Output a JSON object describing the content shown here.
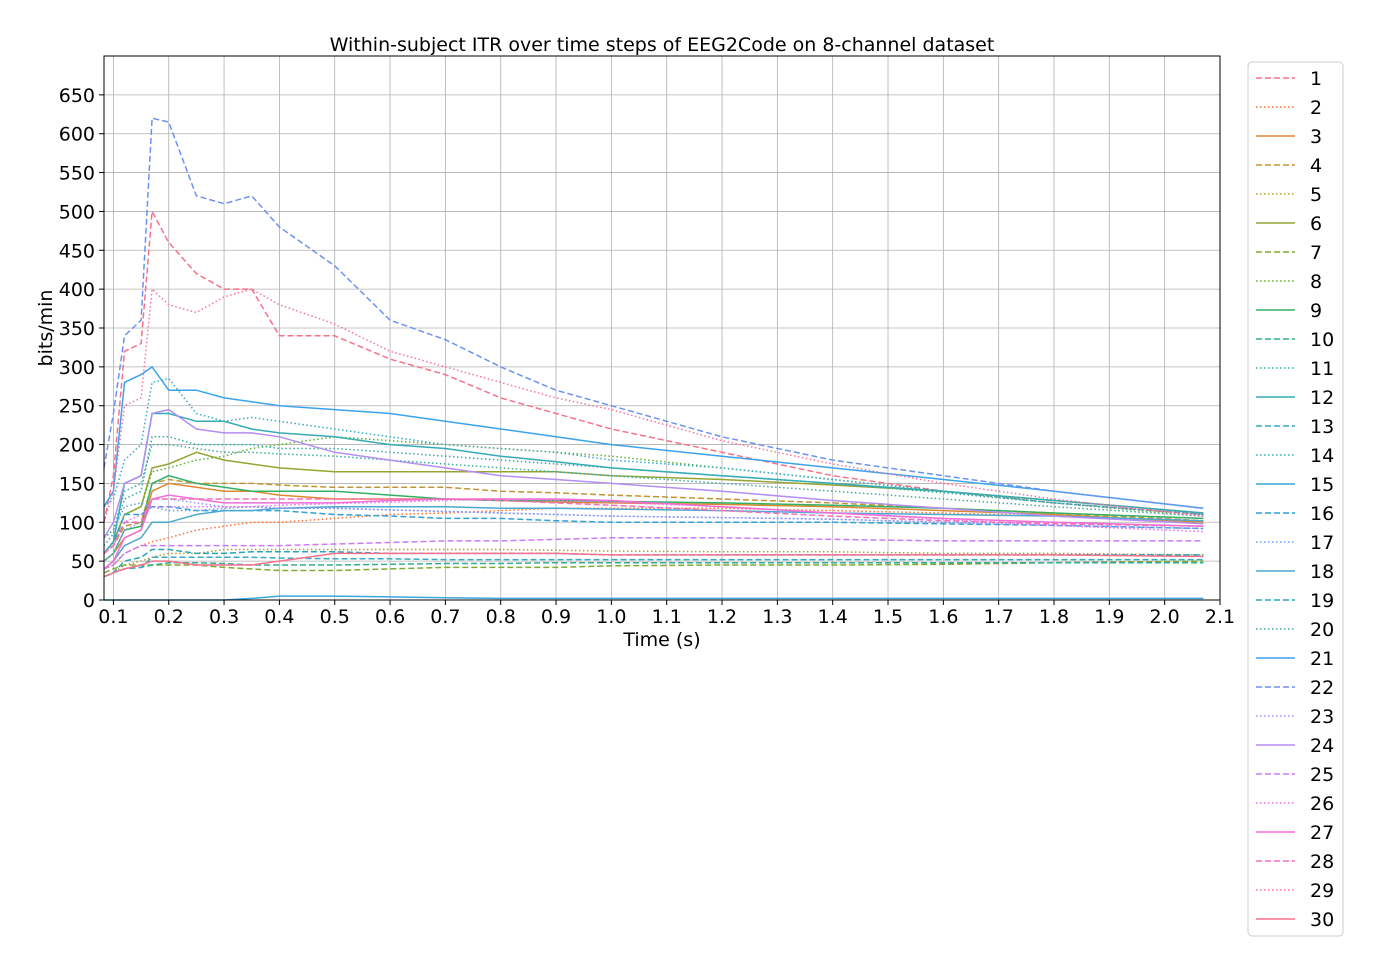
{
  "chart_data": {
    "type": "line",
    "title": "Within-subject ITR over time steps of EEG2Code on 8-channel dataset",
    "xlabel": "Time (s)",
    "ylabel": "bits/min",
    "xlim": [
      0.083,
      2.1
    ],
    "ylim": [
      0,
      700
    ],
    "xticks": [
      "0.1",
      "0.2",
      "0.3",
      "0.4",
      "0.5",
      "0.6",
      "0.7",
      "0.8",
      "0.9",
      "1.0",
      "1.1",
      "1.2",
      "1.3",
      "1.4",
      "1.5",
      "1.6",
      "1.7",
      "1.8",
      "1.9",
      "2.0",
      "2.1"
    ],
    "yticks": [
      "0",
      "50",
      "100",
      "150",
      "200",
      "250",
      "300",
      "350",
      "400",
      "450",
      "500",
      "550",
      "600",
      "650"
    ],
    "grid": true,
    "legend": "outside-right",
    "x": [
      0.083,
      0.1,
      0.12,
      0.15,
      0.17,
      0.2,
      0.25,
      0.3,
      0.35,
      0.4,
      0.5,
      0.6,
      0.7,
      0.8,
      0.9,
      1.0,
      1.2,
      1.4,
      1.6,
      1.8,
      2.07
    ],
    "series": [
      {
        "name": "1",
        "color": "#f77189",
        "dash": "dashed",
        "values": [
          100,
          160,
          320,
          330,
          500,
          460,
          420,
          400,
          400,
          340,
          340,
          310,
          290,
          260,
          240,
          220,
          190,
          160,
          140,
          125,
          110
        ]
      },
      {
        "name": "2",
        "color": "#f5763b",
        "dash": "dotted",
        "values": [
          40,
          45,
          60,
          70,
          75,
          80,
          90,
          95,
          100,
          100,
          105,
          110,
          112,
          115,
          118,
          118,
          118,
          115,
          112,
          108,
          100
        ]
      },
      {
        "name": "3",
        "color": "#dc8932",
        "dash": "solid",
        "values": [
          50,
          60,
          80,
          90,
          140,
          150,
          145,
          140,
          140,
          135,
          130,
          130,
          130,
          128,
          126,
          125,
          123,
          120,
          115,
          110,
          100
        ]
      },
      {
        "name": "4",
        "color": "#c39532",
        "dash": "dashed",
        "values": [
          60,
          70,
          95,
          100,
          150,
          155,
          150,
          150,
          150,
          148,
          145,
          145,
          145,
          140,
          138,
          135,
          130,
          125,
          118,
          112,
          102
        ]
      },
      {
        "name": "5",
        "color": "#ae9d31",
        "dash": "dotted",
        "values": [
          30,
          35,
          45,
          50,
          55,
          60,
          60,
          65,
          65,
          65,
          65,
          65,
          65,
          65,
          64,
          63,
          62,
          62,
          60,
          60,
          58
        ]
      },
      {
        "name": "6",
        "color": "#97a431",
        "dash": "solid",
        "values": [
          60,
          75,
          110,
          120,
          170,
          175,
          190,
          180,
          175,
          170,
          165,
          165,
          165,
          165,
          165,
          160,
          155,
          148,
          140,
          128,
          112
        ]
      },
      {
        "name": "7",
        "color": "#80aa31",
        "dash": "dashed",
        "values": [
          35,
          40,
          45,
          45,
          45,
          45,
          45,
          42,
          40,
          38,
          38,
          40,
          42,
          42,
          42,
          44,
          45,
          45,
          46,
          48,
          50
        ]
      },
      {
        "name": "8",
        "color": "#5cb331",
        "dash": "dotted",
        "values": [
          60,
          75,
          110,
          120,
          165,
          170,
          180,
          185,
          195,
          200,
          210,
          205,
          200,
          195,
          190,
          185,
          170,
          155,
          140,
          125,
          108
        ]
      },
      {
        "name": "9",
        "color": "#32b166",
        "dash": "solid",
        "values": [
          50,
          60,
          90,
          95,
          150,
          160,
          150,
          145,
          140,
          140,
          140,
          135,
          130,
          128,
          128,
          127,
          125,
          122,
          118,
          112,
          105
        ]
      },
      {
        "name": "10",
        "color": "#34ae8d",
        "dash": "dashed",
        "values": [
          30,
          35,
          40,
          42,
          45,
          48,
          48,
          47,
          45,
          45,
          45,
          46,
          47,
          47,
          48,
          48,
          48,
          48,
          48,
          48,
          48
        ]
      },
      {
        "name": "11",
        "color": "#35aca4",
        "dash": "dotted",
        "values": [
          70,
          85,
          130,
          140,
          210,
          210,
          200,
          200,
          200,
          195,
          195,
          190,
          185,
          180,
          175,
          170,
          160,
          150,
          138,
          125,
          110
        ]
      },
      {
        "name": "12",
        "color": "#36abb5",
        "dash": "solid",
        "values": [
          60,
          75,
          150,
          160,
          240,
          240,
          230,
          230,
          220,
          215,
          210,
          200,
          195,
          185,
          178,
          170,
          160,
          150,
          140,
          128,
          112
        ]
      },
      {
        "name": "13",
        "color": "#37aac6",
        "dash": "dashed",
        "values": [
          30,
          35,
          40,
          42,
          55,
          55,
          55,
          55,
          55,
          54,
          53,
          53,
          52,
          52,
          52,
          52,
          52,
          52,
          52,
          52,
          52
        ]
      },
      {
        "name": "14",
        "color": "#38a9c5",
        "dash": "dotted",
        "values": [
          120,
          130,
          180,
          200,
          280,
          285,
          240,
          230,
          235,
          230,
          220,
          210,
          200,
          195,
          190,
          180,
          170,
          155,
          140,
          125,
          110
        ]
      },
      {
        "name": "15",
        "color": "#3aa6da",
        "dash": "solid",
        "values": [
          0,
          0,
          0,
          0,
          0,
          0,
          0,
          0,
          2,
          5,
          5,
          4,
          3,
          2,
          2,
          2,
          2,
          2,
          2,
          2,
          2
        ]
      },
      {
        "name": "16",
        "color": "#31a1d6",
        "dash": "dashed",
        "values": [
          60,
          70,
          110,
          110,
          120,
          120,
          115,
          115,
          115,
          115,
          110,
          108,
          105,
          105,
          102,
          100,
          100,
          100,
          98,
          96,
          92
        ]
      },
      {
        "name": "17",
        "color": "#6e9bf4",
        "dash": "dotted",
        "values": [
          80,
          90,
          120,
          125,
          120,
          115,
          115,
          118,
          120,
          118,
          118,
          116,
          114,
          112,
          110,
          108,
          106,
          104,
          100,
          96,
          92
        ]
      },
      {
        "name": "18",
        "color": "#4ca9cf",
        "dash": "solid",
        "values": [
          40,
          50,
          70,
          80,
          100,
          100,
          110,
          115,
          115,
          118,
          120,
          120,
          120,
          118,
          118,
          117,
          115,
          112,
          110,
          108,
          102
        ]
      },
      {
        "name": "19",
        "color": "#27a5b8",
        "dash": "dashed",
        "values": [
          30,
          35,
          50,
          55,
          65,
          65,
          60,
          60,
          62,
          62,
          62,
          60,
          60,
          60,
          60,
          58,
          58,
          58,
          58,
          58,
          58
        ]
      },
      {
        "name": "20",
        "color": "#3bac9e",
        "dash": "dotted",
        "values": [
          80,
          90,
          140,
          150,
          200,
          200,
          195,
          190,
          190,
          188,
          185,
          180,
          175,
          170,
          165,
          160,
          150,
          140,
          130,
          120,
          108
        ]
      },
      {
        "name": "21",
        "color": "#3ba3ec",
        "dash": "solid",
        "values": [
          120,
          140,
          280,
          290,
          300,
          270,
          270,
          260,
          255,
          250,
          245,
          240,
          230,
          220,
          210,
          200,
          185,
          170,
          155,
          140,
          118
        ]
      },
      {
        "name": "22",
        "color": "#6e92f2",
        "dash": "dashed",
        "values": [
          170,
          240,
          340,
          360,
          620,
          615,
          520,
          510,
          520,
          480,
          430,
          360,
          335,
          300,
          270,
          250,
          210,
          180,
          160,
          140,
          118
        ]
      },
      {
        "name": "23",
        "color": "#9996f3",
        "dash": "dotted",
        "values": [
          50,
          60,
          90,
          100,
          130,
          130,
          125,
          120,
          120,
          118,
          118,
          116,
          114,
          112,
          110,
          108,
          106,
          104,
          100,
          96,
          92
        ]
      },
      {
        "name": "24",
        "color": "#b48ef2",
        "dash": "solid",
        "values": [
          80,
          100,
          150,
          160,
          240,
          245,
          220,
          215,
          215,
          210,
          190,
          180,
          170,
          160,
          155,
          150,
          140,
          128,
          118,
          108,
          98
        ]
      },
      {
        "name": "25",
        "color": "#cc7af4",
        "dash": "dashed",
        "values": [
          40,
          45,
          60,
          70,
          70,
          70,
          70,
          70,
          70,
          70,
          72,
          74,
          76,
          76,
          78,
          80,
          80,
          78,
          76,
          76,
          76
        ]
      },
      {
        "name": "26",
        "color": "#e56ff0",
        "dash": "dotted",
        "values": [
          60,
          70,
          100,
          110,
          120,
          120,
          120,
          120,
          120,
          122,
          124,
          126,
          128,
          130,
          128,
          126,
          120,
          112,
          104,
          96,
          88
        ]
      },
      {
        "name": "27",
        "color": "#f36dd7",
        "dash": "solid",
        "values": [
          40,
          50,
          80,
          90,
          130,
          135,
          130,
          125,
          125,
          125,
          125,
          128,
          130,
          130,
          130,
          128,
          120,
          112,
          105,
          100,
          95
        ]
      },
      {
        "name": "28",
        "color": "#f66fbc",
        "dash": "dashed",
        "values": [
          60,
          70,
          100,
          100,
          130,
          130,
          130,
          130,
          130,
          130,
          130,
          130,
          130,
          128,
          125,
          122,
          115,
          108,
          102,
          98,
          95
        ]
      },
      {
        "name": "29",
        "color": "#f771a4",
        "dash": "dotted",
        "values": [
          100,
          140,
          250,
          260,
          400,
          380,
          370,
          390,
          400,
          380,
          355,
          320,
          300,
          280,
          260,
          245,
          205,
          175,
          150,
          130,
          108
        ]
      },
      {
        "name": "30",
        "color": "#f7718d",
        "dash": "solid",
        "values": [
          30,
          35,
          40,
          45,
          50,
          50,
          45,
          45,
          45,
          50,
          60,
          60,
          60,
          60,
          60,
          58,
          58,
          58,
          58,
          58,
          56
        ]
      }
    ]
  }
}
